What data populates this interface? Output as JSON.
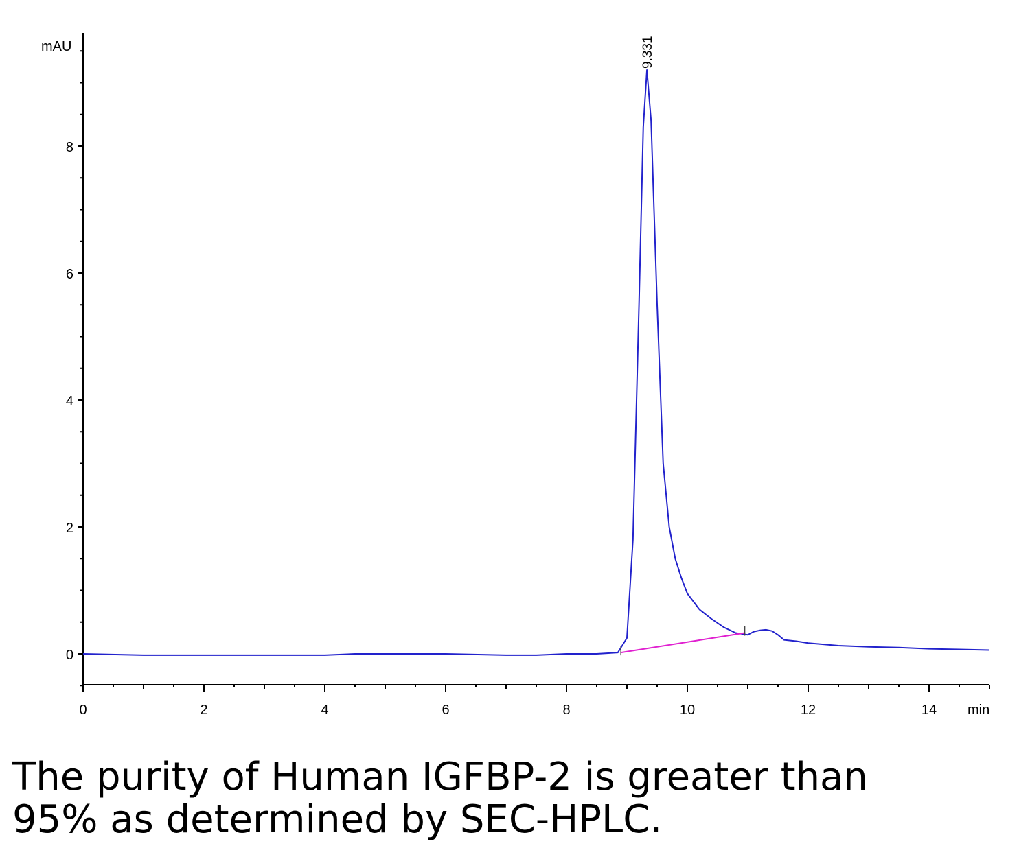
{
  "chart_data": {
    "type": "line",
    "title": "",
    "xlabel": "min",
    "ylabel": "mAU",
    "xlim": [
      0,
      15
    ],
    "ylim": [
      -0.5,
      9.8
    ],
    "x_ticks": [
      0,
      2,
      4,
      6,
      8,
      10,
      12,
      14
    ],
    "y_ticks": [
      0,
      2,
      4,
      6,
      8
    ],
    "grid": false,
    "legend": "none",
    "peak_label": "9.331",
    "series": [
      {
        "color": "#2222cc",
        "x": [
          0,
          1,
          2,
          3,
          4,
          4.5,
          5,
          6,
          7,
          7.5,
          8,
          8.5,
          8.85,
          9.0,
          9.1,
          9.2,
          9.27,
          9.331,
          9.4,
          9.5,
          9.6,
          9.7,
          9.8,
          9.9,
          10.0,
          10.2,
          10.4,
          10.6,
          10.8,
          11.0,
          11.1,
          11.2,
          11.3,
          11.4,
          11.5,
          11.6,
          11.8,
          12.0,
          12.5,
          13.0,
          13.5,
          14.0,
          14.5,
          15.0
        ],
        "values": [
          0.0,
          -0.02,
          -0.02,
          -0.02,
          -0.02,
          0.0,
          0.0,
          0.0,
          -0.02,
          -0.02,
          0.0,
          0.0,
          0.02,
          0.25,
          1.8,
          5.5,
          8.3,
          9.2,
          8.4,
          5.5,
          3.0,
          2.0,
          1.5,
          1.2,
          0.95,
          0.7,
          0.55,
          0.42,
          0.33,
          0.3,
          0.35,
          0.37,
          0.38,
          0.36,
          0.3,
          0.22,
          0.2,
          0.17,
          0.13,
          0.11,
          0.1,
          0.08,
          0.07,
          0.06
        ]
      },
      {
        "color": "#e020d0",
        "x": [
          8.9,
          10.95
        ],
        "values": [
          0.02,
          0.33
        ]
      }
    ]
  },
  "caption": {
    "line1": "The purity of Human IGFBP-2 is greater than",
    "line2": "95% as determined by SEC-HPLC."
  }
}
